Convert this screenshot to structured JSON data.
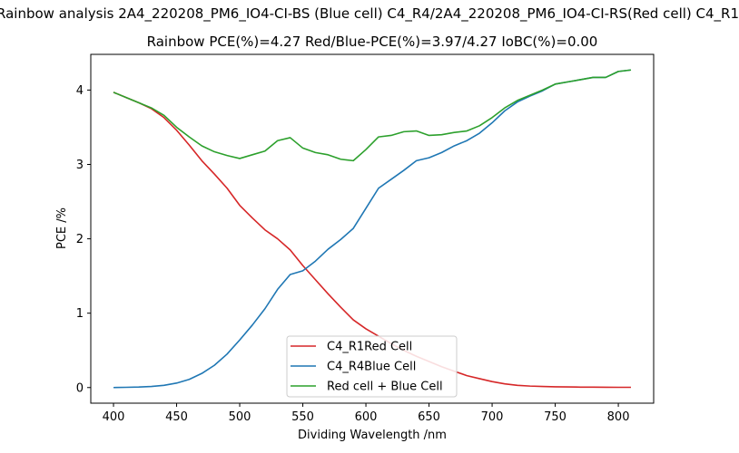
{
  "chart_data": {
    "type": "line",
    "title": "Rainbow analysis 2A4_220208_PM6_IO4-CI-BS (Blue cell) C4_R4/2A4_220208_PM6_IO4-CI-RS(Red cell) C4_R1",
    "subtitle": "Rainbow PCE(%)=4.27  Red/Blue-PCE(%)=3.97/4.27   IoBC(%)=0.00",
    "xlabel": "Dividing Wavelength /nm",
    "ylabel": "PCE /%",
    "xlim": [
      382,
      828
    ],
    "ylim": [
      -0.21,
      4.48
    ],
    "xticks": [
      400,
      450,
      500,
      550,
      600,
      650,
      700,
      750,
      800
    ],
    "yticks": [
      0,
      1,
      2,
      3,
      4
    ],
    "legend_position": "lower-center",
    "x": [
      400,
      410,
      420,
      430,
      440,
      450,
      460,
      470,
      480,
      490,
      500,
      510,
      520,
      530,
      540,
      550,
      560,
      570,
      580,
      590,
      600,
      610,
      620,
      630,
      640,
      650,
      660,
      670,
      680,
      690,
      700,
      710,
      720,
      730,
      740,
      750,
      760,
      770,
      780,
      790,
      800,
      810
    ],
    "series": [
      {
        "name": "C4_R1Red Cell",
        "color": "#d62728",
        "values": [
          3.97,
          3.9,
          3.83,
          3.75,
          3.63,
          3.46,
          3.26,
          3.05,
          2.87,
          2.68,
          2.45,
          2.28,
          2.12,
          2.0,
          1.85,
          1.64,
          1.45,
          1.26,
          1.08,
          0.91,
          0.79,
          0.69,
          0.59,
          0.5,
          0.42,
          0.35,
          0.28,
          0.22,
          0.16,
          0.12,
          0.08,
          0.05,
          0.03,
          0.02,
          0.015,
          0.01,
          0.008,
          0.006,
          0.005,
          0.004,
          0.003,
          0.003
        ]
      },
      {
        "name": "C4_R4Blue Cell",
        "color": "#1f77b4",
        "values": [
          0.0,
          0.003,
          0.007,
          0.015,
          0.03,
          0.06,
          0.11,
          0.19,
          0.3,
          0.45,
          0.64,
          0.84,
          1.06,
          1.32,
          1.52,
          1.57,
          1.7,
          1.86,
          1.99,
          2.14,
          2.41,
          2.68,
          2.8,
          2.92,
          3.05,
          3.09,
          3.16,
          3.25,
          3.32,
          3.42,
          3.56,
          3.72,
          3.84,
          3.92,
          3.99,
          4.08,
          4.11,
          4.14,
          4.17,
          4.17,
          4.25,
          4.27
        ]
      },
      {
        "name": "Red cell + Blue Cell",
        "color": "#2ca02c",
        "values": [
          3.97,
          3.9,
          3.83,
          3.76,
          3.66,
          3.5,
          3.37,
          3.25,
          3.17,
          3.12,
          3.08,
          3.13,
          3.18,
          3.32,
          3.36,
          3.22,
          3.16,
          3.13,
          3.07,
          3.05,
          3.2,
          3.37,
          3.39,
          3.44,
          3.45,
          3.39,
          3.4,
          3.43,
          3.45,
          3.52,
          3.63,
          3.76,
          3.86,
          3.93,
          4.0,
          4.08,
          4.11,
          4.14,
          4.17,
          4.17,
          4.25,
          4.27
        ]
      }
    ]
  }
}
